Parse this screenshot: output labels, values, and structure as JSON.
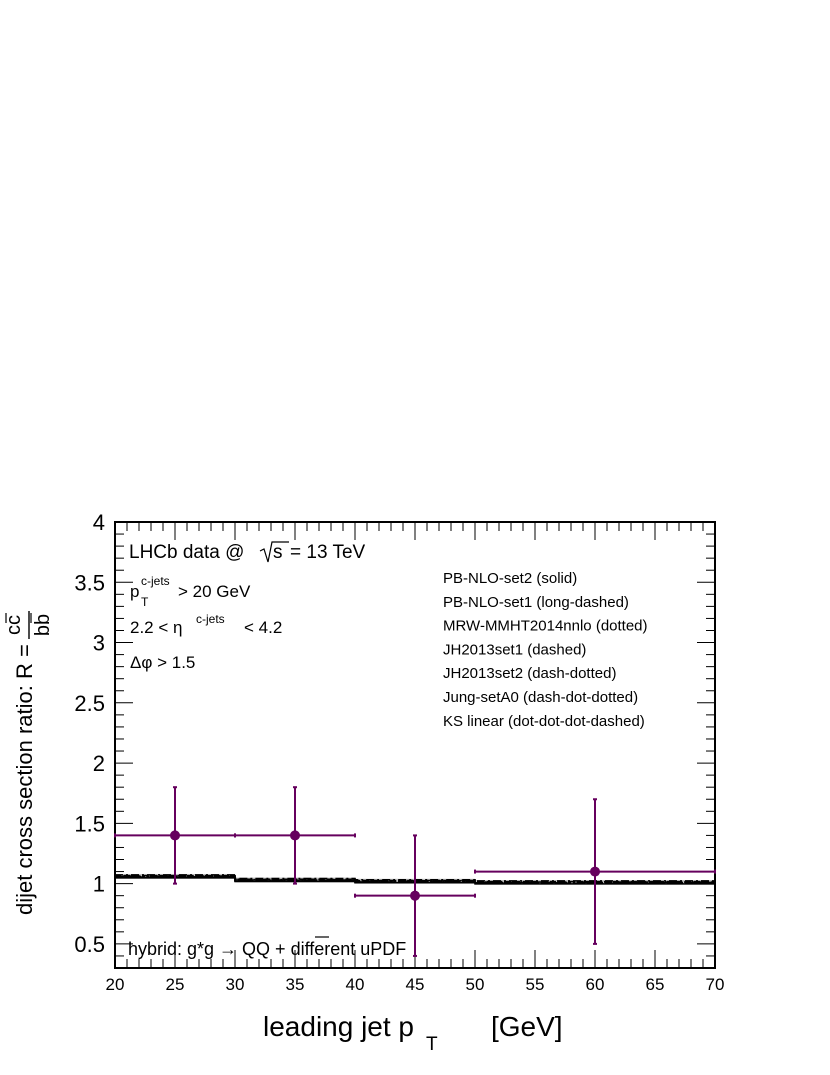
{
  "chart_data": {
    "type": "scatter",
    "xlabel": "leading jet p",
    "xlabel_sub": "T",
    "xlabel_unit": "[GeV]",
    "ylabel": "dijet cross section ratio: R =",
    "ylabel_num": "cc",
    "ylabel_den": "bb",
    "xlim": [
      20,
      70
    ],
    "ylim": [
      0.3,
      4
    ],
    "x_ticks": [
      20,
      25,
      30,
      35,
      40,
      45,
      50,
      55,
      60,
      65,
      70
    ],
    "y_ticks": [
      0.5,
      1,
      1.5,
      2,
      2.5,
      3,
      3.5,
      4
    ],
    "grid": false,
    "annotations": {
      "title": "LHCb data @",
      "sqrt_s": "s",
      "energy": "= 13 TeV",
      "cut_pt_main": "p",
      "cut_pt_sub": "T",
      "cut_pt_sup": "c-jets",
      "cut_pt_rest": "> 20 GeV",
      "cut_eta_left": "2.2 < η",
      "cut_eta_sup": "c-jets",
      "cut_eta_right": "< 4.2",
      "cut_phi": "Δφ > 1.5",
      "hybrid": "hybrid: g*g → QQ + different uPDF"
    },
    "legend_placement": "top-right",
    "legend": [
      "PB-NLO-set2 (solid)",
      "PB-NLO-set1 (long-dashed)",
      "MRW-MMHT2014nnlo (dotted)",
      "JH2013set1 (dashed)",
      "JH2013set2 (dash-dotted)",
      "Jung-setA0 (dash-dot-dotted)",
      "KS linear (dot-dot-dot-dashed)"
    ],
    "data_color": "#66005e",
    "data_points": [
      {
        "x": 25,
        "xlow": 20,
        "xhigh": 30,
        "y": 1.4,
        "ylow": 1.0,
        "yhigh": 1.8
      },
      {
        "x": 35,
        "xlow": 30,
        "xhigh": 40,
        "y": 1.4,
        "ylow": 1.0,
        "yhigh": 1.8
      },
      {
        "x": 45,
        "xlow": 40,
        "xhigh": 50,
        "y": 0.9,
        "ylow": 0.4,
        "yhigh": 1.4
      },
      {
        "x": 60,
        "xlow": 50,
        "xhigh": 70,
        "y": 1.1,
        "ylow": 0.5,
        "yhigh": 1.7
      }
    ],
    "theory_bins": [
      {
        "xlow": 20,
        "xhigh": 30,
        "y": 1.06
      },
      {
        "xlow": 30,
        "xhigh": 40,
        "y": 1.03
      },
      {
        "xlow": 40,
        "xhigh": 50,
        "y": 1.02
      },
      {
        "xlow": 50,
        "xhigh": 70,
        "y": 1.01
      }
    ]
  }
}
